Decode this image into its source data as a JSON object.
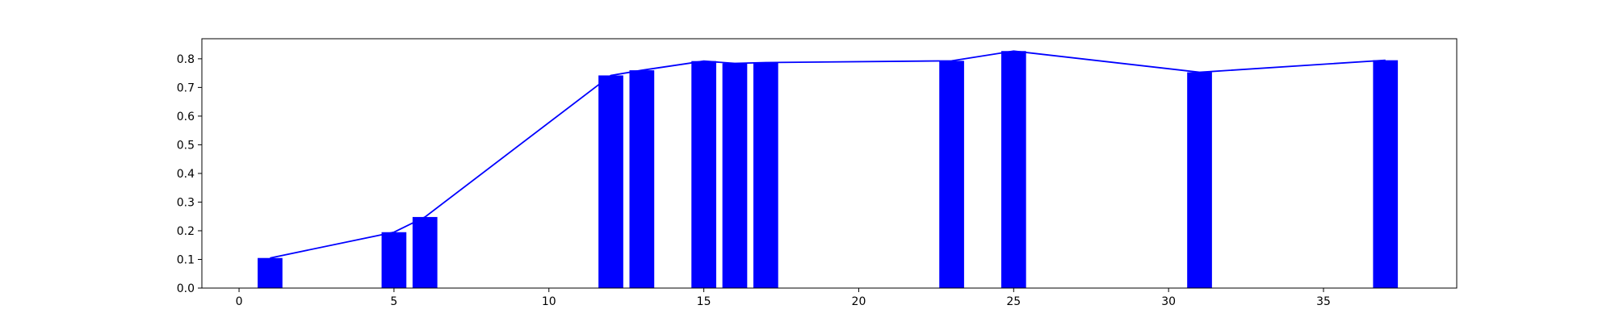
{
  "chart_data": {
    "type": "bar",
    "x": [
      1,
      5,
      6,
      12,
      13,
      15,
      16,
      17,
      23,
      25,
      31,
      37
    ],
    "values": [
      0.105,
      0.195,
      0.248,
      0.742,
      0.76,
      0.792,
      0.784,
      0.787,
      0.793,
      0.827,
      0.753,
      0.795
    ],
    "line_overlay": true,
    "xlim": [
      -1.2,
      39.3
    ],
    "ylim": [
      0,
      0.87
    ],
    "xticks": [
      0,
      5,
      10,
      15,
      20,
      25,
      30,
      35
    ],
    "yticks": [
      0.0,
      0.1,
      0.2,
      0.3,
      0.4,
      0.5,
      0.6,
      0.7,
      0.8
    ],
    "xtick_labels": [
      "0",
      "5",
      "10",
      "15",
      "20",
      "25",
      "30",
      "35"
    ],
    "ytick_labels": [
      "0.0",
      "0.1",
      "0.2",
      "0.3",
      "0.4",
      "0.5",
      "0.6",
      "0.7",
      "0.8"
    ],
    "bar_width": 0.8,
    "grid": false,
    "colors": {
      "bar": "#0000ff",
      "line": "#0000ff",
      "axis": "#000000"
    }
  }
}
